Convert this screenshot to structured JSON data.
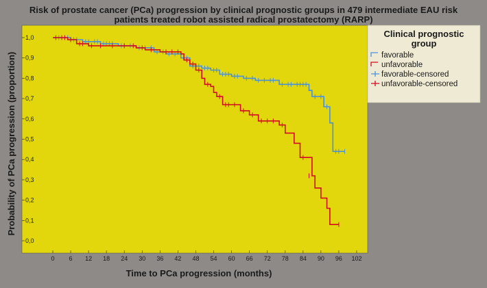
{
  "chart_data": {
    "type": "line",
    "subtype": "kaplan-meier-step",
    "title_line1": "Risk of prostate cancer (PCa) progression by  clinical prognostic groups in 479 intermediate EAU risk",
    "title_line2": "patients treated robot assisted radical prostatectomy (RARP)",
    "xlabel": "Time to PCa progression (months)",
    "ylabel": "Probability of PCa progression (proportion)",
    "xlim": [
      0,
      102
    ],
    "ylim": [
      0,
      1.0
    ],
    "x_ticks": [
      "0",
      "6",
      "12",
      "18",
      "24",
      "30",
      "36",
      "42",
      "48",
      "54",
      "60",
      "66",
      "72",
      "78",
      "84",
      "90",
      "96",
      "102"
    ],
    "y_ticks": [
      "0,0",
      "0,1",
      "0,2",
      "0,3",
      "0,4",
      "0,5",
      "0,6",
      "0,7",
      "0,8",
      "0,9",
      "1,0"
    ],
    "grid": false,
    "legend": {
      "title_line1": "Clinical prognostic",
      "title_line2": "group",
      "position": "top-right",
      "entries": [
        {
          "label": "favorable",
          "marker": "step",
          "color": "#4a90d9"
        },
        {
          "label": "unfavorable",
          "marker": "step",
          "color": "#d10a1f"
        },
        {
          "label": "favorable-censored",
          "marker": "plus",
          "color": "#4a90d9"
        },
        {
          "label": "unfavorable-censored",
          "marker": "plus",
          "color": "#d10a1f"
        }
      ]
    },
    "series": [
      {
        "name": "favorable",
        "color": "#4a90d9",
        "steps": [
          [
            0,
            1.0
          ],
          [
            6,
            0.99
          ],
          [
            10,
            0.98
          ],
          [
            16,
            0.97
          ],
          [
            22,
            0.96
          ],
          [
            28,
            0.95
          ],
          [
            34,
            0.93
          ],
          [
            38,
            0.92
          ],
          [
            43,
            0.9
          ],
          [
            46,
            0.86
          ],
          [
            50,
            0.85
          ],
          [
            53,
            0.84
          ],
          [
            56,
            0.82
          ],
          [
            60,
            0.81
          ],
          [
            64,
            0.8
          ],
          [
            68,
            0.79
          ],
          [
            76,
            0.77
          ],
          [
            86,
            0.74
          ],
          [
            87,
            0.71
          ],
          [
            91,
            0.66
          ],
          [
            93,
            0.58
          ],
          [
            94,
            0.44
          ],
          [
            98,
            0.44
          ]
        ],
        "censored": [
          [
            2,
            1.0
          ],
          [
            4,
            1.0
          ],
          [
            5,
            1.0
          ],
          [
            7,
            0.99
          ],
          [
            8,
            0.99
          ],
          [
            11,
            0.98
          ],
          [
            12,
            0.98
          ],
          [
            14,
            0.98
          ],
          [
            15,
            0.98
          ],
          [
            17,
            0.97
          ],
          [
            18,
            0.97
          ],
          [
            19,
            0.97
          ],
          [
            20,
            0.97
          ],
          [
            23,
            0.96
          ],
          [
            24,
            0.96
          ],
          [
            26,
            0.96
          ],
          [
            29,
            0.95
          ],
          [
            31,
            0.95
          ],
          [
            33,
            0.95
          ],
          [
            35,
            0.93
          ],
          [
            37,
            0.93
          ],
          [
            39,
            0.92
          ],
          [
            41,
            0.92
          ],
          [
            44,
            0.9
          ],
          [
            45,
            0.9
          ],
          [
            47,
            0.86
          ],
          [
            49,
            0.86
          ],
          [
            51,
            0.85
          ],
          [
            52,
            0.85
          ],
          [
            54,
            0.84
          ],
          [
            55,
            0.84
          ],
          [
            57,
            0.82
          ],
          [
            58,
            0.82
          ],
          [
            59,
            0.82
          ],
          [
            61,
            0.81
          ],
          [
            62,
            0.81
          ],
          [
            65,
            0.8
          ],
          [
            67,
            0.8
          ],
          [
            69,
            0.79
          ],
          [
            71,
            0.79
          ],
          [
            73,
            0.79
          ],
          [
            74,
            0.79
          ],
          [
            77,
            0.77
          ],
          [
            79,
            0.77
          ],
          [
            80,
            0.77
          ],
          [
            82,
            0.77
          ],
          [
            83,
            0.77
          ],
          [
            84,
            0.77
          ],
          [
            85,
            0.77
          ],
          [
            88,
            0.71
          ],
          [
            90,
            0.71
          ],
          [
            92,
            0.66
          ],
          [
            95,
            0.44
          ],
          [
            96,
            0.44
          ],
          [
            98,
            0.44
          ]
        ]
      },
      {
        "name": "unfavorable",
        "color": "#d10a1f",
        "steps": [
          [
            0,
            1.0
          ],
          [
            5,
            0.99
          ],
          [
            8,
            0.97
          ],
          [
            12,
            0.96
          ],
          [
            28,
            0.95
          ],
          [
            31,
            0.94
          ],
          [
            36,
            0.93
          ],
          [
            43,
            0.92
          ],
          [
            44,
            0.89
          ],
          [
            46,
            0.87
          ],
          [
            48,
            0.84
          ],
          [
            50,
            0.8
          ],
          [
            51,
            0.77
          ],
          [
            53,
            0.76
          ],
          [
            54,
            0.73
          ],
          [
            55,
            0.71
          ],
          [
            57,
            0.67
          ],
          [
            63,
            0.64
          ],
          [
            66,
            0.62
          ],
          [
            69,
            0.59
          ],
          [
            76,
            0.57
          ],
          [
            78,
            0.53
          ],
          [
            81,
            0.48
          ],
          [
            83,
            0.41
          ],
          [
            87,
            0.32
          ],
          [
            88,
            0.26
          ],
          [
            90,
            0.21
          ],
          [
            92,
            0.16
          ],
          [
            93,
            0.08
          ],
          [
            96,
            0.08
          ]
        ],
        "censored": [
          [
            1,
            1.0
          ],
          [
            3,
            1.0
          ],
          [
            4,
            1.0
          ],
          [
            6,
            0.99
          ],
          [
            9,
            0.97
          ],
          [
            10,
            0.97
          ],
          [
            13,
            0.96
          ],
          [
            16,
            0.96
          ],
          [
            20,
            0.96
          ],
          [
            24,
            0.96
          ],
          [
            27,
            0.96
          ],
          [
            30,
            0.95
          ],
          [
            33,
            0.94
          ],
          [
            38,
            0.93
          ],
          [
            40,
            0.93
          ],
          [
            42,
            0.93
          ],
          [
            45,
            0.89
          ],
          [
            47,
            0.87
          ],
          [
            49,
            0.84
          ],
          [
            52,
            0.77
          ],
          [
            56,
            0.71
          ],
          [
            58,
            0.67
          ],
          [
            59,
            0.67
          ],
          [
            61,
            0.67
          ],
          [
            64,
            0.64
          ],
          [
            67,
            0.62
          ],
          [
            70,
            0.59
          ],
          [
            72,
            0.59
          ],
          [
            74,
            0.59
          ],
          [
            77,
            0.57
          ],
          [
            84,
            0.41
          ],
          [
            86,
            0.32
          ],
          [
            96,
            0.08
          ]
        ]
      }
    ]
  }
}
